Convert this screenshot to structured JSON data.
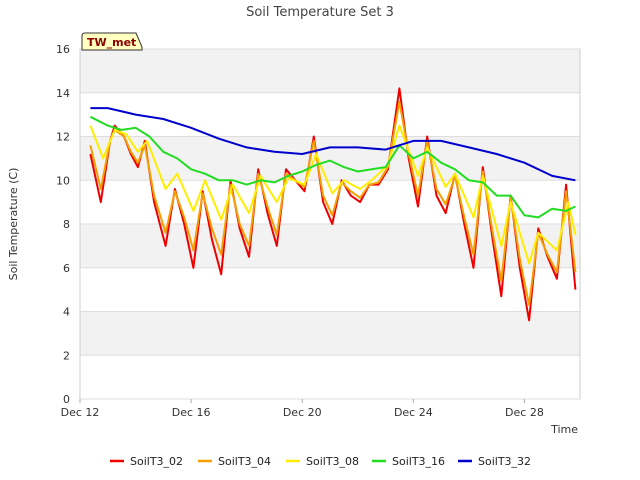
{
  "chart_data": {
    "type": "line",
    "title": "Soil Temperature Set 3",
    "xlabel": "Time",
    "ylabel": "Soil Temperature (C)",
    "badge": "TW_met",
    "x_start": "2023-12-12",
    "x_end": "2023-12-30",
    "xlim": [
      "2023-12-12",
      "2023-12-30"
    ],
    "ylim": [
      0,
      16
    ],
    "yticks": [
      0,
      2,
      4,
      6,
      8,
      10,
      12,
      14,
      16
    ],
    "xticks": [
      {
        "date": "2023-12-12",
        "label": "Dec 12"
      },
      {
        "date": "2023-12-16",
        "label": "Dec 16"
      },
      {
        "date": "2023-12-20",
        "label": "Dec 20"
      },
      {
        "date": "2023-12-24",
        "label": "Dec 24"
      },
      {
        "date": "2023-12-28",
        "label": "Dec 28"
      }
    ],
    "grid": "horizontal",
    "legend_position": "bottom",
    "series": [
      {
        "name": "SoilT3_02",
        "color": "#ee0000",
        "points": [
          [
            "2023-12-12T09:00",
            11.2
          ],
          [
            "2023-12-12T18:00",
            9.0
          ],
          [
            "2023-12-13T02:00",
            11.8
          ],
          [
            "2023-12-13T06:00",
            12.5
          ],
          [
            "2023-12-13T14:00",
            12.0
          ],
          [
            "2023-12-13T20:00",
            11.2
          ],
          [
            "2023-12-14T02:00",
            10.6
          ],
          [
            "2023-12-14T08:00",
            11.8
          ],
          [
            "2023-12-14T16:00",
            9.0
          ],
          [
            "2023-12-15T02:00",
            7.0
          ],
          [
            "2023-12-15T10:00",
            9.6
          ],
          [
            "2023-12-15T18:00",
            8.0
          ],
          [
            "2023-12-16T02:00",
            6.0
          ],
          [
            "2023-12-16T10:00",
            9.5
          ],
          [
            "2023-12-16T18:00",
            7.3
          ],
          [
            "2023-12-17T02:00",
            5.7
          ],
          [
            "2023-12-17T10:00",
            10.0
          ],
          [
            "2023-12-17T18:00",
            7.8
          ],
          [
            "2023-12-18T02:00",
            6.5
          ],
          [
            "2023-12-18T10:00",
            10.5
          ],
          [
            "2023-12-18T18:00",
            8.5
          ],
          [
            "2023-12-19T02:00",
            7.0
          ],
          [
            "2023-12-19T10:00",
            10.5
          ],
          [
            "2023-12-19T18:00",
            10.0
          ],
          [
            "2023-12-20T02:00",
            9.5
          ],
          [
            "2023-12-20T10:00",
            12.0
          ],
          [
            "2023-12-20T18:00",
            9.0
          ],
          [
            "2023-12-21T02:00",
            8.0
          ],
          [
            "2023-12-21T10:00",
            10.0
          ],
          [
            "2023-12-21T18:00",
            9.3
          ],
          [
            "2023-12-22T02:00",
            9.0
          ],
          [
            "2023-12-22T10:00",
            9.8
          ],
          [
            "2023-12-22T18:00",
            9.8
          ],
          [
            "2023-12-23T02:00",
            10.5
          ],
          [
            "2023-12-23T12:00",
            14.2
          ],
          [
            "2023-12-23T20:00",
            11.0
          ],
          [
            "2023-12-24T04:00",
            8.8
          ],
          [
            "2023-12-24T12:00",
            12.0
          ],
          [
            "2023-12-24T20:00",
            9.3
          ],
          [
            "2023-12-25T04:00",
            8.5
          ],
          [
            "2023-12-25T12:00",
            10.3
          ],
          [
            "2023-12-25T20:00",
            8.0
          ],
          [
            "2023-12-26T04:00",
            6.0
          ],
          [
            "2023-12-26T12:00",
            10.6
          ],
          [
            "2023-12-26T20:00",
            7.5
          ],
          [
            "2023-12-27T04:00",
            4.7
          ],
          [
            "2023-12-27T12:00",
            9.3
          ],
          [
            "2023-12-27T20:00",
            6.0
          ],
          [
            "2023-12-28T04:00",
            3.6
          ],
          [
            "2023-12-28T12:00",
            7.8
          ],
          [
            "2023-12-28T20:00",
            6.5
          ],
          [
            "2023-12-29T04:00",
            5.5
          ],
          [
            "2023-12-29T12:00",
            9.8
          ],
          [
            "2023-12-29T20:00",
            5.0
          ]
        ]
      },
      {
        "name": "SoilT3_04",
        "color": "#f5a000",
        "points": [
          [
            "2023-12-12T09:00",
            11.6
          ],
          [
            "2023-12-12T18:00",
            9.6
          ],
          [
            "2023-12-13T02:00",
            11.8
          ],
          [
            "2023-12-13T06:00",
            12.3
          ],
          [
            "2023-12-13T14:00",
            12.0
          ],
          [
            "2023-12-13T20:00",
            11.3
          ],
          [
            "2023-12-14T02:00",
            10.8
          ],
          [
            "2023-12-14T08:00",
            11.6
          ],
          [
            "2023-12-14T16:00",
            9.3
          ],
          [
            "2023-12-15T02:00",
            7.6
          ],
          [
            "2023-12-15T10:00",
            9.5
          ],
          [
            "2023-12-15T18:00",
            8.3
          ],
          [
            "2023-12-16T02:00",
            6.8
          ],
          [
            "2023-12-16T10:00",
            9.4
          ],
          [
            "2023-12-16T18:00",
            7.8
          ],
          [
            "2023-12-17T02:00",
            6.6
          ],
          [
            "2023-12-17T10:00",
            9.8
          ],
          [
            "2023-12-17T18:00",
            8.0
          ],
          [
            "2023-12-18T02:00",
            7.0
          ],
          [
            "2023-12-18T10:00",
            10.3
          ],
          [
            "2023-12-18T18:00",
            8.8
          ],
          [
            "2023-12-19T02:00",
            7.5
          ],
          [
            "2023-12-19T10:00",
            10.3
          ],
          [
            "2023-12-19T18:00",
            10.0
          ],
          [
            "2023-12-20T02:00",
            9.7
          ],
          [
            "2023-12-20T10:00",
            11.8
          ],
          [
            "2023-12-20T18:00",
            9.3
          ],
          [
            "2023-12-21T02:00",
            8.4
          ],
          [
            "2023-12-21T10:00",
            9.9
          ],
          [
            "2023-12-21T18:00",
            9.5
          ],
          [
            "2023-12-22T02:00",
            9.2
          ],
          [
            "2023-12-22T10:00",
            9.8
          ],
          [
            "2023-12-22T18:00",
            9.9
          ],
          [
            "2023-12-23T02:00",
            10.6
          ],
          [
            "2023-12-23T12:00",
            13.6
          ],
          [
            "2023-12-23T20:00",
            11.2
          ],
          [
            "2023-12-24T04:00",
            9.3
          ],
          [
            "2023-12-24T12:00",
            11.8
          ],
          [
            "2023-12-24T20:00",
            9.6
          ],
          [
            "2023-12-25T04:00",
            8.9
          ],
          [
            "2023-12-25T12:00",
            10.2
          ],
          [
            "2023-12-25T20:00",
            8.3
          ],
          [
            "2023-12-26T04:00",
            6.6
          ],
          [
            "2023-12-26T12:00",
            10.4
          ],
          [
            "2023-12-26T20:00",
            7.8
          ],
          [
            "2023-12-27T04:00",
            5.4
          ],
          [
            "2023-12-27T12:00",
            9.2
          ],
          [
            "2023-12-27T20:00",
            6.4
          ],
          [
            "2023-12-28T04:00",
            4.3
          ],
          [
            "2023-12-28T12:00",
            7.6
          ],
          [
            "2023-12-28T20:00",
            6.6
          ],
          [
            "2023-12-29T04:00",
            5.8
          ],
          [
            "2023-12-29T12:00",
            9.5
          ],
          [
            "2023-12-29T20:00",
            5.8
          ]
        ]
      },
      {
        "name": "SoilT3_08",
        "color": "#ffee00",
        "points": [
          [
            "2023-12-12T09:00",
            12.5
          ],
          [
            "2023-12-12T20:00",
            11.0
          ],
          [
            "2023-12-13T06:00",
            12.3
          ],
          [
            "2023-12-13T16:00",
            12.1
          ],
          [
            "2023-12-14T02:00",
            11.3
          ],
          [
            "2023-12-14T10:00",
            11.8
          ],
          [
            "2023-12-15T02:00",
            9.6
          ],
          [
            "2023-12-15T12:00",
            10.3
          ],
          [
            "2023-12-16T02:00",
            8.6
          ],
          [
            "2023-12-16T12:00",
            10.0
          ],
          [
            "2023-12-17T02:00",
            8.2
          ],
          [
            "2023-12-17T12:00",
            9.8
          ],
          [
            "2023-12-18T02:00",
            8.5
          ],
          [
            "2023-12-18T12:00",
            10.2
          ],
          [
            "2023-12-19T02:00",
            9.0
          ],
          [
            "2023-12-19T12:00",
            10.1
          ],
          [
            "2023-12-20T02:00",
            9.8
          ],
          [
            "2023-12-20T12:00",
            11.2
          ],
          [
            "2023-12-21T02:00",
            9.4
          ],
          [
            "2023-12-21T12:00",
            10.0
          ],
          [
            "2023-12-22T02:00",
            9.6
          ],
          [
            "2023-12-22T12:00",
            10.0
          ],
          [
            "2023-12-23T02:00",
            10.7
          ],
          [
            "2023-12-23T12:00",
            12.5
          ],
          [
            "2023-12-24T04:00",
            10.2
          ],
          [
            "2023-12-24T12:00",
            11.5
          ],
          [
            "2023-12-25T04:00",
            9.7
          ],
          [
            "2023-12-25T12:00",
            10.3
          ],
          [
            "2023-12-26T04:00",
            8.3
          ],
          [
            "2023-12-26T12:00",
            10.2
          ],
          [
            "2023-12-27T04:00",
            7.0
          ],
          [
            "2023-12-27T12:00",
            9.0
          ],
          [
            "2023-12-28T04:00",
            6.2
          ],
          [
            "2023-12-28T12:00",
            7.6
          ],
          [
            "2023-12-29T04:00",
            6.8
          ],
          [
            "2023-12-29T14:00",
            9.0
          ],
          [
            "2023-12-29T20:00",
            7.5
          ]
        ]
      },
      {
        "name": "SoilT3_16",
        "color": "#22dd22",
        "points": [
          [
            "2023-12-12T09:00",
            12.9
          ],
          [
            "2023-12-13T00:00",
            12.5
          ],
          [
            "2023-12-13T12:00",
            12.3
          ],
          [
            "2023-12-14T00:00",
            12.4
          ],
          [
            "2023-12-14T12:00",
            12.0
          ],
          [
            "2023-12-15T00:00",
            11.3
          ],
          [
            "2023-12-15T12:00",
            11.0
          ],
          [
            "2023-12-16T00:00",
            10.5
          ],
          [
            "2023-12-16T12:00",
            10.3
          ],
          [
            "2023-12-17T00:00",
            10.0
          ],
          [
            "2023-12-17T12:00",
            10.0
          ],
          [
            "2023-12-18T00:00",
            9.8
          ],
          [
            "2023-12-18T12:00",
            10.0
          ],
          [
            "2023-12-19T00:00",
            9.9
          ],
          [
            "2023-12-19T12:00",
            10.2
          ],
          [
            "2023-12-20T00:00",
            10.4
          ],
          [
            "2023-12-20T12:00",
            10.7
          ],
          [
            "2023-12-21T00:00",
            10.9
          ],
          [
            "2023-12-21T12:00",
            10.6
          ],
          [
            "2023-12-22T00:00",
            10.4
          ],
          [
            "2023-12-22T12:00",
            10.5
          ],
          [
            "2023-12-23T00:00",
            10.6
          ],
          [
            "2023-12-23T12:00",
            11.6
          ],
          [
            "2023-12-24T00:00",
            11.0
          ],
          [
            "2023-12-24T12:00",
            11.3
          ],
          [
            "2023-12-25T00:00",
            10.8
          ],
          [
            "2023-12-25T12:00",
            10.5
          ],
          [
            "2023-12-26T00:00",
            10.0
          ],
          [
            "2023-12-26T12:00",
            9.9
          ],
          [
            "2023-12-27T00:00",
            9.3
          ],
          [
            "2023-12-27T12:00",
            9.3
          ],
          [
            "2023-12-28T00:00",
            8.4
          ],
          [
            "2023-12-28T12:00",
            8.3
          ],
          [
            "2023-12-29T00:00",
            8.7
          ],
          [
            "2023-12-29T12:00",
            8.6
          ],
          [
            "2023-12-29T20:00",
            8.8
          ]
        ]
      },
      {
        "name": "SoilT3_32",
        "color": "#0000cc",
        "points": [
          [
            "2023-12-12T09:00",
            13.3
          ],
          [
            "2023-12-13T00:00",
            13.3
          ],
          [
            "2023-12-14T00:00",
            13.0
          ],
          [
            "2023-12-15T00:00",
            12.8
          ],
          [
            "2023-12-16T00:00",
            12.4
          ],
          [
            "2023-12-17T00:00",
            11.9
          ],
          [
            "2023-12-18T00:00",
            11.5
          ],
          [
            "2023-12-19T00:00",
            11.3
          ],
          [
            "2023-12-20T00:00",
            11.2
          ],
          [
            "2023-12-21T00:00",
            11.5
          ],
          [
            "2023-12-22T00:00",
            11.5
          ],
          [
            "2023-12-23T00:00",
            11.4
          ],
          [
            "2023-12-24T00:00",
            11.8
          ],
          [
            "2023-12-25T00:00",
            11.8
          ],
          [
            "2023-12-26T00:00",
            11.5
          ],
          [
            "2023-12-27T00:00",
            11.2
          ],
          [
            "2023-12-28T00:00",
            10.8
          ],
          [
            "2023-12-29T00:00",
            10.2
          ],
          [
            "2023-12-29T20:00",
            10.0
          ]
        ]
      }
    ]
  }
}
